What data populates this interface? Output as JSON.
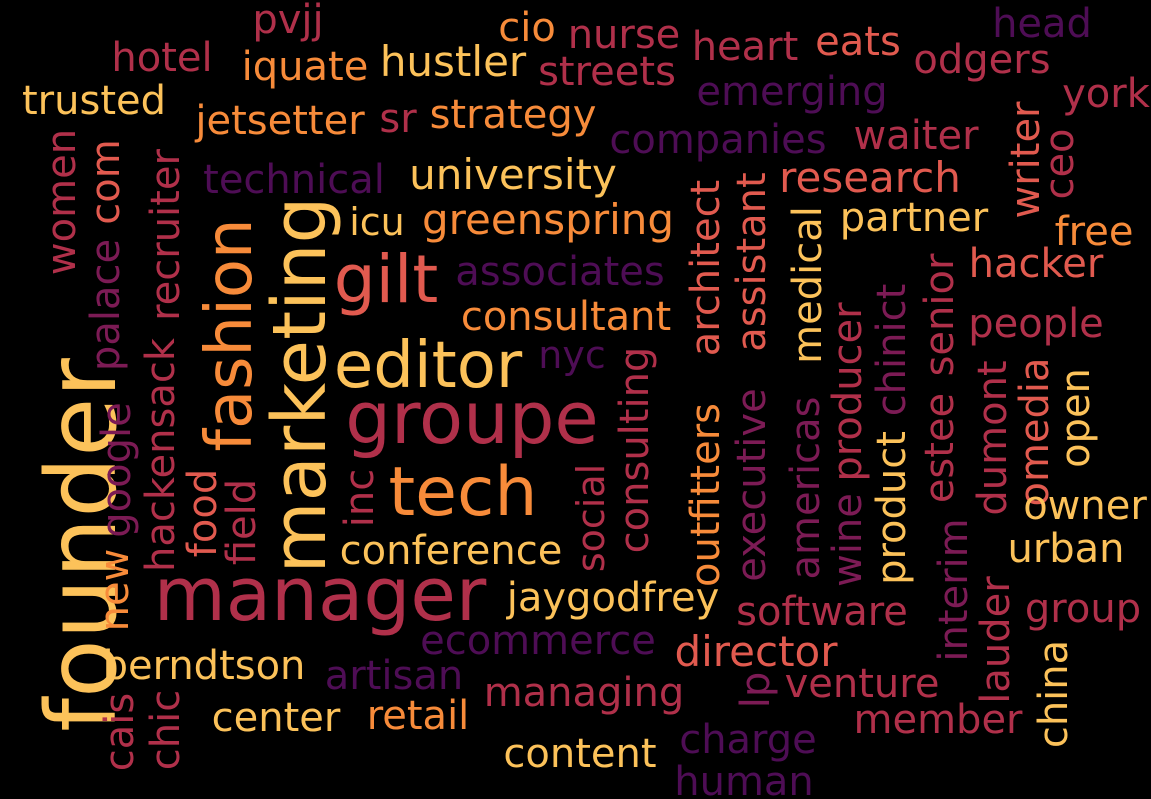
{
  "palette": {
    "background": "#000000",
    "light_yellow": "#fcc25a",
    "orange": "#f78b3a",
    "coral": "#e15a4f",
    "crimson": "#b0304a",
    "magenta": "#7c1b55",
    "deep_purple": "#4e0d55"
  },
  "words": [
    "founder",
    "manager",
    "marketing",
    "fashion",
    "groupe",
    "editor",
    "tech",
    "gilt",
    "conference",
    "jaygodfrey",
    "consultant",
    "greenspring",
    "icu",
    "university",
    "technical",
    "associates",
    "nyc",
    "social",
    "consulting",
    "outfitters",
    "architect",
    "executive",
    "assistant",
    "americas",
    "medical",
    "wine",
    "producer",
    "product",
    "chinict",
    "estee",
    "senior",
    "interim",
    "dumont",
    "lauder",
    "omedia",
    "open",
    "china",
    "owner",
    "urban",
    "group",
    "people",
    "hacker",
    "free",
    "partner",
    "research",
    "waiter",
    "companies",
    "emerging",
    "heart",
    "head",
    "eats",
    "odgers",
    "york",
    "writer",
    "ceo",
    "nurse",
    "cio",
    "streets",
    "hustler",
    "iquate",
    "pvjj",
    "hotel",
    "trusted",
    "jetsetter",
    "sr",
    "strategy",
    "recruiter",
    "com",
    "women",
    "palace",
    "google",
    "hackensack",
    "food",
    "field",
    "inc",
    "new",
    "cais",
    "chic",
    "berndtson",
    "center",
    "retail",
    "artisan",
    "ecommerce",
    "managing",
    "content",
    "director",
    "software",
    "lp",
    "venture",
    "member",
    "charge",
    "human"
  ]
}
